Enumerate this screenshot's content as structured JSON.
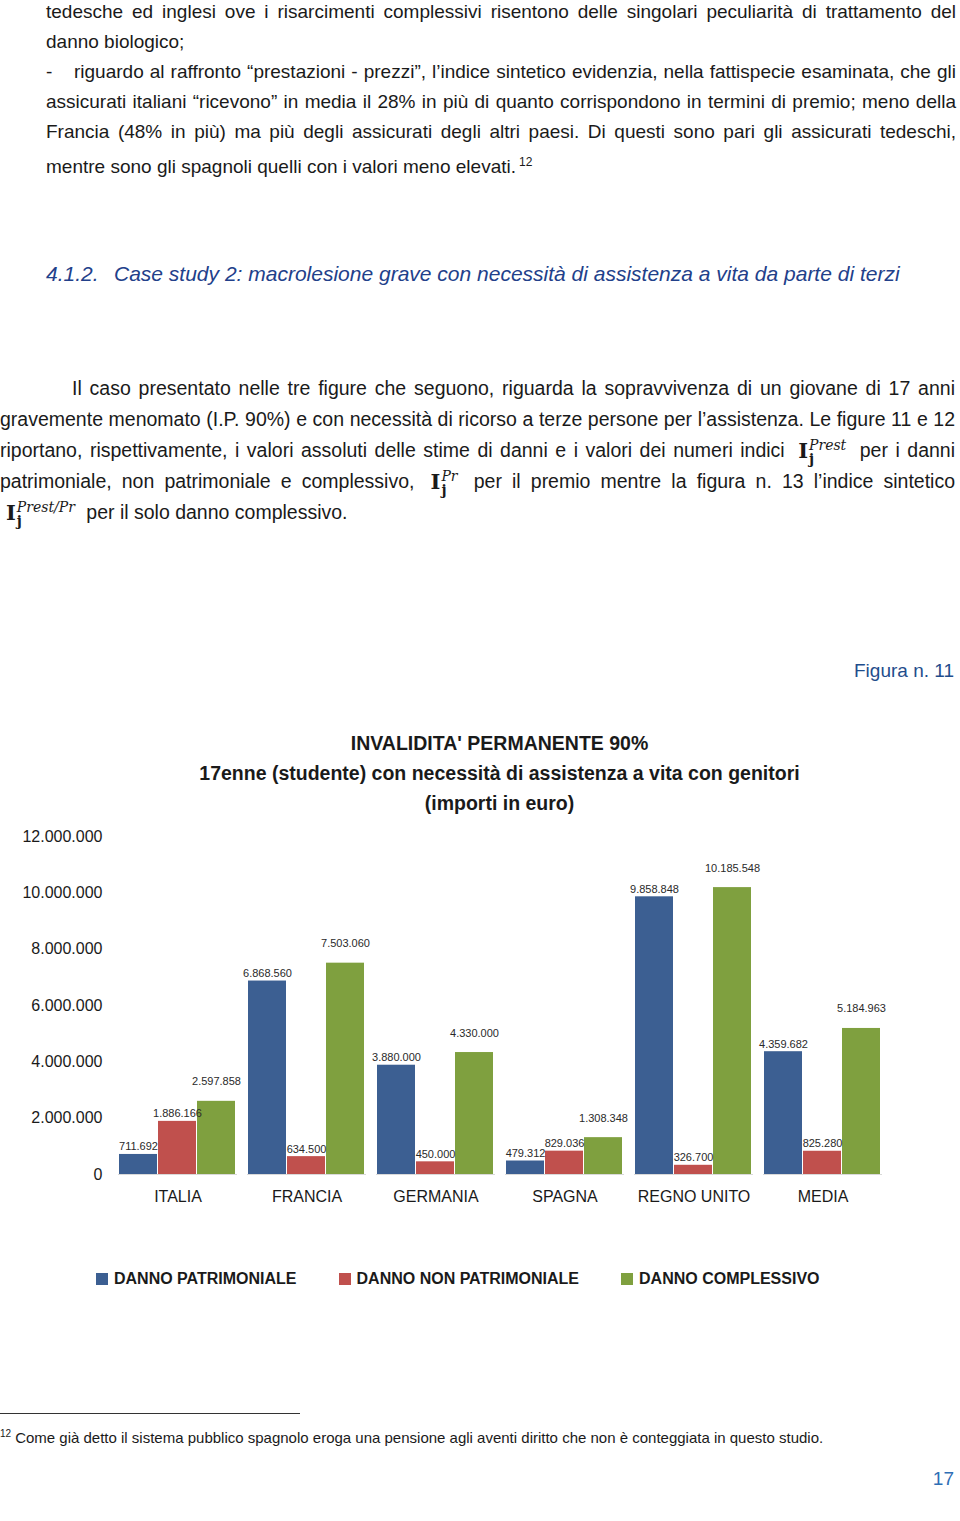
{
  "page": {
    "intro": "tedesche ed inglesi ove i risarcimenti complessivi risentono delle singolari peculiarità di trattamento del danno biologico;",
    "bullet_marker": "-",
    "bullet": "riguardo al raffronto “prestazioni - prezzi”, l’indice sintetico evidenzia, nella fattispecie esaminata, che gli assicurati italiani “ricevono” in media il 28% in più di quanto corrispondono in termini di premio; meno della Francia (48% in più) ma più degli assicurati degli altri paesi. Di questi sono pari gli assicurati tedeschi, mentre sono gli spagnoli quelli con i valori meno elevati.",
    "bullet_footnote_ref": "12",
    "heading": {
      "number": "4.1.2.",
      "text": "Case study 2: macrolesione grave con necessità di assistenza a vita da parte di terzi"
    },
    "paragraph": [
      {
        "text": "Il caso presentato nelle tre figure che seguono, riguarda la sopravvivenza di un giovane di 17 anni gravemente menomato (I.P. 90%) e con necessità di ricorso a terze persone per l’assistenza. Le figure 11 e 12 riportano, rispettivamente, i valori assoluti delle stime di danni e i valori dei numeri indici"
      },
      {
        "symbol": {
          "base": "I",
          "sub": "j",
          "sup": "Prest"
        }
      },
      {
        "text": "per i danni patrimoniale, non patrimoniale e complessivo,"
      },
      {
        "symbol": {
          "base": "I",
          "sub": "j",
          "sup": "Pr"
        }
      },
      {
        "text": "per il premio mentre la figura n. 13 l’indice sintetico"
      },
      {
        "symbol": {
          "base": "I",
          "sub": "j",
          "sup": "Prest/Pr"
        }
      },
      {
        "text": "per il solo danno complessivo."
      }
    ],
    "figure_label": "Figura n. 11",
    "footnote": {
      "ref": "12",
      "text": "Come già detto il sistema pubblico spagnolo eroga una pensione agli aventi diritto che non è conteggiata in questo studio."
    },
    "page_number": "17"
  },
  "chart_data": {
    "type": "bar",
    "title": "INVALIDITA' PERMANENTE 90%",
    "subtitle": [
      "17enne (studente) con necessità di assistenza a vita con genitori",
      "(importi in euro)"
    ],
    "categories": [
      "ITALIA",
      "FRANCIA",
      "GERMANIA",
      "SPAGNA",
      "REGNO UNITO",
      "MEDIA"
    ],
    "series": [
      {
        "name": "DANNO PATRIMONIALE",
        "color": "#3c5f92",
        "values": [
          711692,
          6868560,
          3880000,
          479312,
          9858848,
          4359682
        ],
        "value_labels": [
          "711.692",
          "6.868.560",
          "3.880.000",
          "479.312",
          "9.858.848",
          "4.359.682"
        ]
      },
      {
        "name": "DANNO NON PATRIMONIALE",
        "color": "#c0504d",
        "values": [
          1886166,
          634500,
          450000,
          829036,
          326700,
          825280
        ],
        "value_labels": [
          "1.886.166",
          "634.500",
          "450.000",
          "829.036",
          "326.700",
          "825.280"
        ]
      },
      {
        "name": "DANNO COMPLESSIVO",
        "color": "#7fa03f",
        "values": [
          2597858,
          7503060,
          4330000,
          1308348,
          10185548,
          5184963
        ],
        "value_labels": [
          "2.597.858",
          "7.503.060",
          "4.330.000",
          "1.308.348",
          "10.185.548",
          "5.184.963"
        ]
      }
    ],
    "ylim": [
      0,
      12000000
    ],
    "yticks": [
      0,
      {
        "value": 2000000,
        "label": "2.000.000"
      },
      {
        "value": 4000000,
        "label": "4.000.000"
      },
      {
        "value": 6000000,
        "label": "6.000.000"
      },
      {
        "value": 8000000,
        "label": "8.000.000"
      },
      {
        "value": 10000000,
        "label": "10.000.000"
      },
      {
        "value": 12000000,
        "label": "12.000.000"
      }
    ],
    "grid": false,
    "legend": "bottom",
    "data_labels": true
  }
}
